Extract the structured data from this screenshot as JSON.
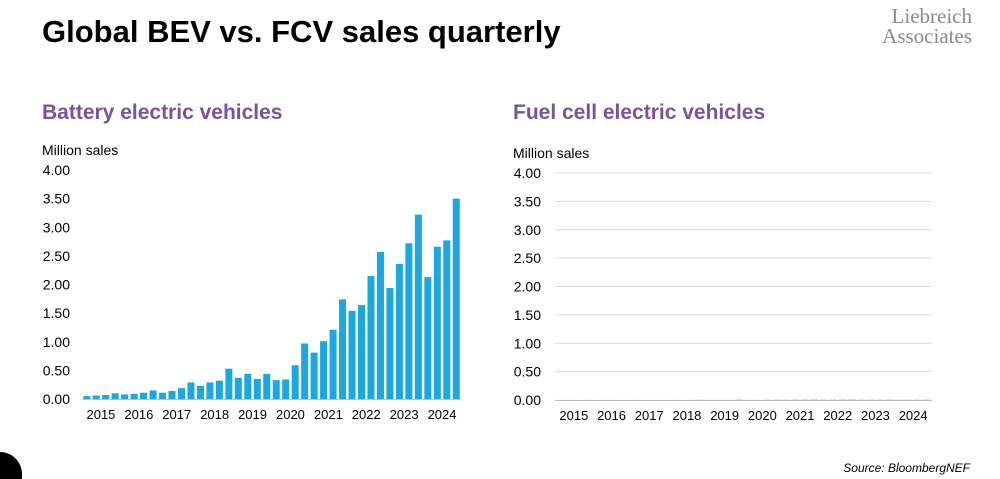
{
  "header": {
    "title": "Global BEV vs. FCV sales quarterly",
    "logo_line1": "Liebreich",
    "logo_line2": "Associates"
  },
  "footer": {
    "source": "Source: BloombergNEF"
  },
  "colors": {
    "bar": "#1ba8e0",
    "panel_title": "#7a52a3",
    "grid": "#d9d9d9",
    "logo": "#8a8a8a"
  },
  "chart_data": [
    {
      "type": "bar",
      "title": "Battery electric vehicles",
      "ylabel": "Million sales",
      "xlabel": "",
      "ylim": [
        0,
        4
      ],
      "yticks": [
        "0.00",
        "0.50",
        "1.00",
        "1.50",
        "2.00",
        "2.50",
        "3.00",
        "3.50",
        "4.00"
      ],
      "xticks": [
        "2015",
        "2016",
        "2017",
        "2018",
        "2019",
        "2020",
        "2021",
        "2022",
        "2023",
        "2024"
      ],
      "categories": [
        "2015 Q1",
        "2015 Q2",
        "2015 Q3",
        "2015 Q4",
        "2016 Q1",
        "2016 Q2",
        "2016 Q3",
        "2016 Q4",
        "2017 Q1",
        "2017 Q2",
        "2017 Q3",
        "2017 Q4",
        "2018 Q1",
        "2018 Q2",
        "2018 Q3",
        "2018 Q4",
        "2019 Q1",
        "2019 Q2",
        "2019 Q3",
        "2019 Q4",
        "2020 Q1",
        "2020 Q2",
        "2020 Q3",
        "2020 Q4",
        "2021 Q1",
        "2021 Q2",
        "2021 Q3",
        "2021 Q4",
        "2022 Q1",
        "2022 Q2",
        "2022 Q3",
        "2022 Q4",
        "2023 Q1",
        "2023 Q2",
        "2023 Q3",
        "2023 Q4",
        "2024 Q1",
        "2024 Q2",
        "2024 Q3",
        "2024 Q4"
      ],
      "values": [
        0.05,
        0.06,
        0.07,
        0.1,
        0.08,
        0.09,
        0.11,
        0.15,
        0.11,
        0.14,
        0.19,
        0.29,
        0.23,
        0.29,
        0.32,
        0.53,
        0.37,
        0.44,
        0.35,
        0.44,
        0.33,
        0.34,
        0.59,
        0.97,
        0.81,
        1.01,
        1.21,
        1.74,
        1.54,
        1.64,
        2.15,
        2.57,
        1.94,
        2.36,
        2.72,
        3.22,
        2.13,
        2.66,
        2.77,
        3.5
      ]
    },
    {
      "type": "bar",
      "title": "Fuel cell electric vehicles",
      "ylabel": "Million sales",
      "xlabel": "",
      "ylim": [
        0,
        4
      ],
      "yticks": [
        "0.00",
        "0.50",
        "1.00",
        "1.50",
        "2.00",
        "2.50",
        "3.00",
        "3.50",
        "4.00"
      ],
      "xticks": [
        "2015",
        "2016",
        "2017",
        "2018",
        "2019",
        "2020",
        "2021",
        "2022",
        "2023",
        "2024"
      ],
      "categories": [
        "2015 Q1",
        "2015 Q2",
        "2015 Q3",
        "2015 Q4",
        "2016 Q1",
        "2016 Q2",
        "2016 Q3",
        "2016 Q4",
        "2017 Q1",
        "2017 Q2",
        "2017 Q3",
        "2017 Q4",
        "2018 Q1",
        "2018 Q2",
        "2018 Q3",
        "2018 Q4",
        "2019 Q1",
        "2019 Q2",
        "2019 Q3",
        "2019 Q4",
        "2020 Q1",
        "2020 Q2",
        "2020 Q3",
        "2020 Q4",
        "2021 Q1",
        "2021 Q2",
        "2021 Q3",
        "2021 Q4",
        "2022 Q1",
        "2022 Q2",
        "2022 Q3",
        "2022 Q4",
        "2023 Q1",
        "2023 Q2",
        "2023 Q3",
        "2023 Q4",
        "2024 Q1",
        "2024 Q2",
        "2024 Q3",
        "2024 Q4"
      ],
      "values": [
        0.0008,
        0.0008,
        0.001,
        0.0012,
        0.0005,
        0.0008,
        0.0009,
        0.001,
        0.0006,
        0.0008,
        0.001,
        0.0012,
        0.0008,
        0.001,
        0.0013,
        0.0023,
        0.0015,
        0.002,
        0.0022,
        0.0045,
        0.0015,
        0.002,
        0.0025,
        0.0035,
        0.003,
        0.004,
        0.0045,
        0.005,
        0.004,
        0.0045,
        0.005,
        0.006,
        0.003,
        0.004,
        0.0035,
        0.0045,
        0.0025,
        0.003,
        0.0035,
        0.004
      ]
    }
  ]
}
